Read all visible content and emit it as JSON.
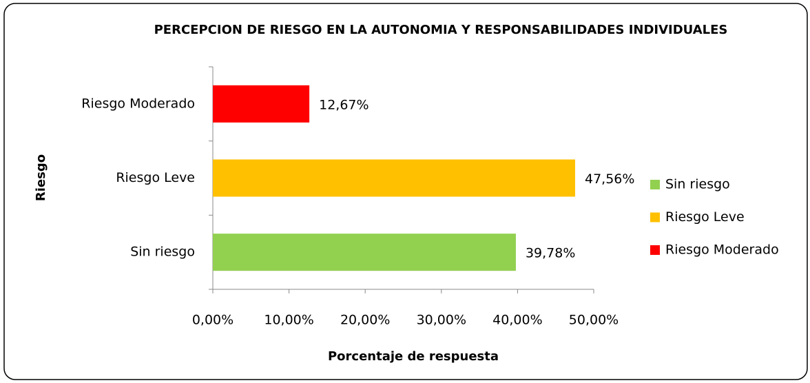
{
  "chart_data": {
    "type": "barh",
    "title": "PERCEPCION DE RIESGO EN  LA AUTONOMIA Y RESPONSABILIDADES INDIVIDUALES",
    "x_label": "Porcentaje de respuesta",
    "y_label": "Riesgo",
    "categories": [
      "Sin riesgo",
      "Riesgo Leve",
      "Riesgo Moderado"
    ],
    "values": [
      39.78,
      47.56,
      12.67
    ],
    "value_labels": [
      "39,78%",
      "47,56%",
      "12,67%"
    ],
    "colors": [
      "#92d050",
      "#ffc000",
      "#ff0000"
    ],
    "xlim": [
      0,
      50
    ],
    "xticks": [
      {
        "value": 0,
        "label": "0,00%"
      },
      {
        "value": 10,
        "label": "10,00%"
      },
      {
        "value": 20,
        "label": "20,00%"
      },
      {
        "value": 30,
        "label": "30,00%"
      },
      {
        "value": 40,
        "label": "40,00%"
      },
      {
        "value": 50,
        "label": "50,00%"
      }
    ],
    "grid": false,
    "legend": "right"
  }
}
